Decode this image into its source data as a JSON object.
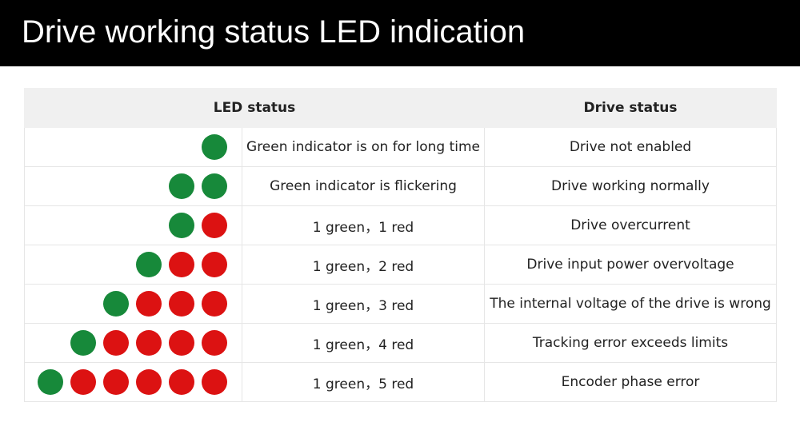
{
  "header": {
    "title": "Drive working status LED indication"
  },
  "table": {
    "headers": [
      "LED status",
      "Drive status"
    ],
    "rows": [
      [
        "Green indicator is on for long time",
        "Drive not enabled"
      ],
      [
        "Green indicator is flickering",
        "Drive working normally"
      ],
      [
        "1 green，1 red",
        "Drive overcurrent"
      ],
      [
        "1 green，2 red",
        "Drive input power overvoltage"
      ],
      [
        "1 green，3 red",
        "The internal voltage of the drive is wrong"
      ],
      [
        "1 green，4 red",
        "Tracking error exceeds limits"
      ],
      [
        "1 green，5 red",
        "Encoder phase error"
      ]
    ]
  }
}
